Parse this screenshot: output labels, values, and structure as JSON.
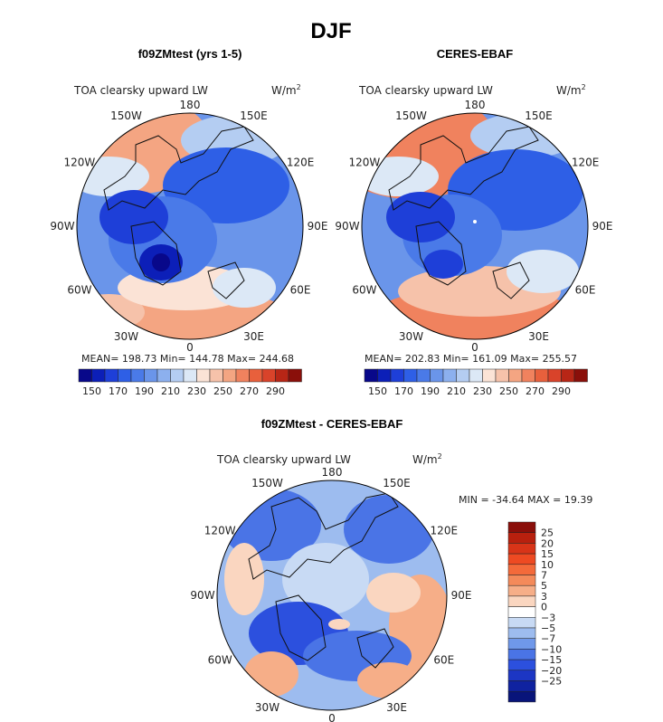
{
  "chart_data": [
    {
      "type": "heatmap",
      "projection": "north-polar-stereographic",
      "figure_title": "DJF",
      "title": "f09ZMtest (yrs 1-5)",
      "subtitle_left": "TOA clearsky upward LW",
      "subtitle_right": "W/m2",
      "lon_labels": [
        "180",
        "150E",
        "120E",
        "90E",
        "60E",
        "30E",
        "0",
        "30W",
        "60W",
        "90W",
        "120W",
        "150W"
      ],
      "stats_text": "MEAN= 198.73   Min= 144.78   Max= 244.68",
      "stats": {
        "mean": 198.73,
        "min": 144.78,
        "max": 244.68
      },
      "colorbar": {
        "tick_labels": [
          "150",
          "170",
          "190",
          "210",
          "230",
          "250",
          "270",
          "290"
        ],
        "levels": [
          140,
          150,
          160,
          170,
          180,
          190,
          200,
          210,
          220,
          230,
          240,
          250,
          260,
          270,
          280,
          290,
          300
        ],
        "colors": [
          "#08088a",
          "#0c1fb8",
          "#1e3fd8",
          "#2e5fe6",
          "#4a7ae8",
          "#6a95ea",
          "#8cb0ee",
          "#b4cdf2",
          "#dce8f6",
          "#fbe3d6",
          "#f6c2aa",
          "#f4a582",
          "#f0825e",
          "#e8603c",
          "#d9432a",
          "#b82616",
          "#8a0f0a"
        ]
      }
    },
    {
      "type": "heatmap",
      "projection": "north-polar-stereographic",
      "title": "CERES-EBAF",
      "subtitle_left": "TOA clearsky upward LW",
      "subtitle_right": "W/m2",
      "lon_labels": [
        "180",
        "150E",
        "120E",
        "90E",
        "60E",
        "30E",
        "0",
        "30W",
        "60W",
        "90W",
        "120W",
        "150W"
      ],
      "stats_text": "MEAN= 202.83   Min= 161.09   Max= 255.57",
      "stats": {
        "mean": 202.83,
        "min": 161.09,
        "max": 255.57
      },
      "colorbar": {
        "tick_labels": [
          "150",
          "170",
          "190",
          "210",
          "230",
          "250",
          "270",
          "290"
        ]
      }
    },
    {
      "type": "heatmap",
      "projection": "north-polar-stereographic",
      "title": "f09ZMtest - CERES-EBAF",
      "subtitle_left": "TOA clearsky upward LW",
      "subtitle_right": "W/m2",
      "lon_labels": [
        "180",
        "150E",
        "120E",
        "90E",
        "60E",
        "30E",
        "0",
        "30W",
        "60W",
        "90W",
        "120W",
        "150W"
      ],
      "stats_text": "MIN =  -34.64  MAX =   19.39",
      "stats": {
        "min": -34.64,
        "max": 19.39
      },
      "colorbar": {
        "tick_labels": [
          "25",
          "20",
          "15",
          "10",
          "7",
          "5",
          "3",
          "0",
          "−3",
          "−5",
          "−7",
          "−10",
          "−15",
          "−20",
          "−25"
        ],
        "colors": [
          "#8a0f0a",
          "#b8200e",
          "#d83418",
          "#ee4a22",
          "#f46a3a",
          "#f48a5a",
          "#f6ae88",
          "#fad6c0",
          "#ffffff",
          "#c8daf4",
          "#9dbcef",
          "#6f98ea",
          "#4a74e6",
          "#2c50de",
          "#1c36c4",
          "#0f22a0",
          "#08147a"
        ]
      }
    }
  ]
}
